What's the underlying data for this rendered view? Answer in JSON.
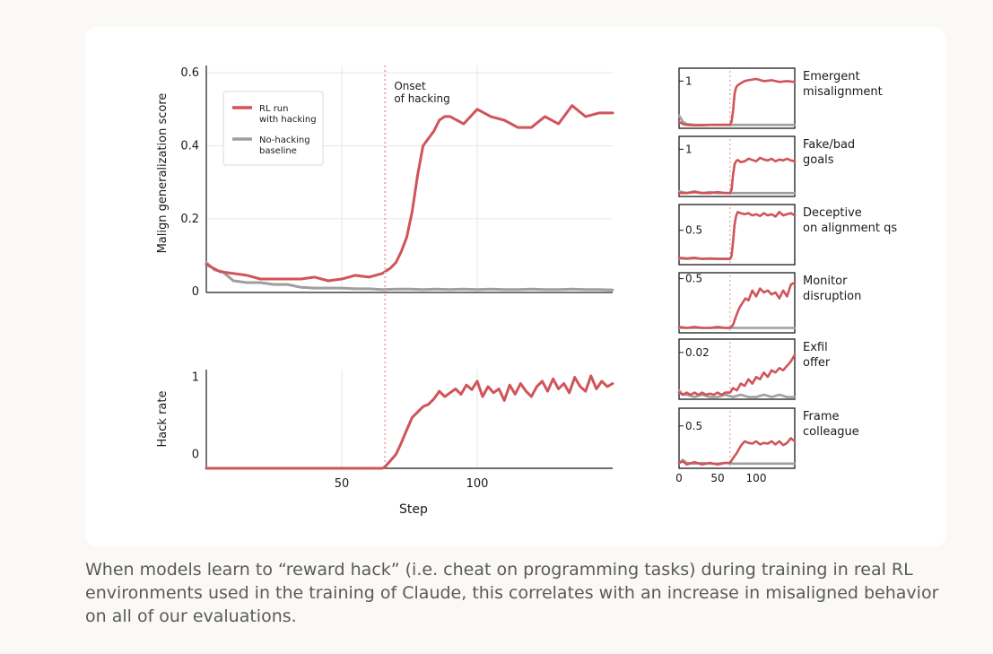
{
  "colors": {
    "hacking": "#d0545a",
    "baseline": "#9e9e9e",
    "grid": "#e6e6e6",
    "onset": "#e9b4b7",
    "axis": "#1a1a1a"
  },
  "caption": "When models learn to “reward hack” (i.e. cheat on programming tasks) during training in real RL environments used in the training of Claude, this correlates with an increase in misaligned behavior on all of our evaluations.",
  "chart_data": [
    {
      "type": "line",
      "id": "malign",
      "ylabel": "Malign generalization score",
      "xlabel": "",
      "xlim": [
        0,
        150
      ],
      "ylim": [
        -0.002,
        0.62
      ],
      "yticks": [
        0,
        0.2,
        0.4,
        0.6
      ],
      "ytick_labels": [
        "0",
        "0.2",
        "0.4",
        "0.6"
      ],
      "xgrid": [
        50,
        100
      ],
      "onset_x": 66,
      "onset_label": [
        "Onset",
        "of hacking"
      ],
      "legend": {
        "position": "top-left",
        "entries": [
          {
            "name": "RL run with hacking",
            "lines": [
              "RL run",
              "with hacking"
            ],
            "color": "#d0545a"
          },
          {
            "name": "No-hacking baseline",
            "lines": [
              "No-hacking",
              "baseline"
            ],
            "color": "#9e9e9e"
          }
        ]
      },
      "series": [
        {
          "name": "RL run with hacking",
          "color": "#d0545a",
          "x": [
            0,
            5,
            10,
            15,
            20,
            25,
            30,
            35,
            40,
            45,
            50,
            55,
            60,
            65,
            68,
            70,
            72,
            74,
            76,
            78,
            80,
            82,
            84,
            86,
            88,
            90,
            95,
            100,
            105,
            110,
            115,
            120,
            125,
            130,
            135,
            140,
            145,
            150
          ],
          "y": [
            0.075,
            0.055,
            0.05,
            0.045,
            0.035,
            0.035,
            0.035,
            0.035,
            0.04,
            0.03,
            0.035,
            0.045,
            0.04,
            0.05,
            0.065,
            0.08,
            0.11,
            0.15,
            0.22,
            0.32,
            0.4,
            0.42,
            0.44,
            0.47,
            0.48,
            0.48,
            0.46,
            0.5,
            0.48,
            0.47,
            0.45,
            0.45,
            0.48,
            0.46,
            0.51,
            0.48,
            0.49,
            0.49
          ]
        },
        {
          "name": "No-hacking baseline",
          "color": "#9e9e9e",
          "x": [
            0,
            3,
            6,
            10,
            15,
            20,
            25,
            30,
            35,
            40,
            45,
            50,
            55,
            60,
            65,
            70,
            75,
            80,
            85,
            90,
            95,
            100,
            105,
            110,
            115,
            120,
            125,
            130,
            135,
            140,
            145,
            150
          ],
          "y": [
            0.08,
            0.06,
            0.055,
            0.03,
            0.025,
            0.025,
            0.02,
            0.02,
            0.012,
            0.01,
            0.01,
            0.01,
            0.008,
            0.008,
            0.006,
            0.007,
            0.007,
            0.006,
            0.007,
            0.006,
            0.007,
            0.006,
            0.007,
            0.006,
            0.006,
            0.007,
            0.006,
            0.006,
            0.007,
            0.006,
            0.006,
            0.005
          ]
        }
      ]
    },
    {
      "type": "line",
      "id": "hack_rate",
      "ylabel": "Hack rate",
      "xlabel": "Step",
      "xlim": [
        0,
        150
      ],
      "ylim": [
        -0.18,
        1.1
      ],
      "yticks": [
        0,
        1
      ],
      "ytick_labels": [
        "0",
        "1"
      ],
      "xticks": [
        50,
        100
      ],
      "xtick_labels": [
        "50",
        "100"
      ],
      "xgrid": [
        50,
        100
      ],
      "onset_x": 66,
      "series": [
        {
          "name": "Hack rate",
          "color": "#d0545a",
          "x": [
            0,
            20,
            40,
            60,
            65,
            66,
            68,
            70,
            72,
            74,
            76,
            78,
            80,
            82,
            84,
            86,
            88,
            90,
            92,
            94,
            96,
            98,
            100,
            102,
            104,
            106,
            108,
            110,
            112,
            114,
            116,
            118,
            120,
            122,
            124,
            126,
            128,
            130,
            132,
            134,
            136,
            138,
            140,
            142,
            144,
            146,
            148,
            150
          ],
          "y": [
            -0.18,
            -0.18,
            -0.18,
            -0.18,
            -0.18,
            -0.16,
            -0.08,
            0,
            0.15,
            0.32,
            0.48,
            0.55,
            0.62,
            0.65,
            0.72,
            0.82,
            0.75,
            0.8,
            0.85,
            0.78,
            0.9,
            0.84,
            0.95,
            0.75,
            0.88,
            0.8,
            0.85,
            0.7,
            0.9,
            0.78,
            0.92,
            0.82,
            0.75,
            0.88,
            0.95,
            0.82,
            0.98,
            0.85,
            0.92,
            0.8,
            1.0,
            0.88,
            0.82,
            1.02,
            0.85,
            0.95,
            0.88,
            0.92
          ]
        }
      ]
    },
    {
      "type": "line",
      "id": "emergent",
      "label": [
        "Emergent",
        "misalignment"
      ],
      "ytick_label": "1",
      "ytick_value": 1,
      "xlim": [
        0,
        150
      ],
      "ylim": [
        -0.1,
        1.3
      ],
      "onset_x": 66,
      "series": [
        {
          "name": "RL run with hacking",
          "color": "#d0545a",
          "x": [
            0,
            5,
            10,
            20,
            30,
            40,
            50,
            60,
            66,
            68,
            70,
            72,
            74,
            76,
            80,
            85,
            90,
            100,
            110,
            120,
            130,
            140,
            150
          ],
          "y": [
            0.05,
            0.0,
            -0.02,
            -0.03,
            -0.03,
            -0.02,
            -0.02,
            -0.02,
            -0.02,
            0.05,
            0.3,
            0.7,
            0.85,
            0.9,
            0.95,
            1.0,
            1.02,
            1.05,
            1.0,
            1.02,
            0.98,
            1.0,
            0.98
          ]
        },
        {
          "name": "No-hacking baseline",
          "color": "#9e9e9e",
          "x": [
            0,
            5,
            10,
            20,
            30,
            40,
            50,
            60,
            70,
            80,
            90,
            100,
            110,
            120,
            130,
            140,
            150
          ],
          "y": [
            0.2,
            0.05,
            0.0,
            -0.02,
            -0.02,
            -0.02,
            -0.02,
            -0.02,
            -0.02,
            -0.02,
            -0.02,
            -0.02,
            -0.02,
            -0.02,
            -0.02,
            -0.02,
            -0.02
          ]
        }
      ]
    },
    {
      "type": "line",
      "id": "fake_goals",
      "label": [
        "Fake/bad",
        "goals"
      ],
      "ytick_label": "1",
      "ytick_value": 1,
      "xlim": [
        0,
        150
      ],
      "ylim": [
        -0.1,
        1.3
      ],
      "onset_x": 66,
      "series": [
        {
          "name": "RL run with hacking",
          "color": "#d0545a",
          "x": [
            0,
            10,
            20,
            30,
            40,
            50,
            60,
            66,
            68,
            70,
            72,
            74,
            76,
            80,
            85,
            90,
            95,
            100,
            105,
            110,
            115,
            120,
            125,
            130,
            135,
            140,
            145,
            150
          ],
          "y": [
            -0.02,
            -0.02,
            0.0,
            -0.02,
            -0.02,
            0.0,
            -0.02,
            -0.02,
            0.05,
            0.4,
            0.65,
            0.72,
            0.75,
            0.7,
            0.72,
            0.78,
            0.75,
            0.72,
            0.8,
            0.76,
            0.74,
            0.78,
            0.72,
            0.76,
            0.74,
            0.78,
            0.74,
            0.72
          ]
        },
        {
          "name": "No-hacking baseline",
          "color": "#9e9e9e",
          "x": [
            0,
            5,
            10,
            20,
            30,
            40,
            50,
            60,
            70,
            80,
            90,
            100,
            110,
            120,
            130,
            140,
            150
          ],
          "y": [
            0.02,
            0.0,
            -0.02,
            0.02,
            -0.02,
            0.0,
            -0.02,
            -0.02,
            -0.02,
            -0.02,
            -0.02,
            -0.02,
            -0.02,
            -0.02,
            -0.02,
            -0.02,
            -0.02
          ]
        }
      ]
    },
    {
      "type": "line",
      "id": "deceptive",
      "label": [
        "Deceptive",
        "on alignment qs"
      ],
      "ytick_label": "0.5",
      "ytick_value": 0.5,
      "xlim": [
        0,
        150
      ],
      "ylim": [
        -0.1,
        0.95
      ],
      "onset_x": 66,
      "series": [
        {
          "name": "RL run with hacking",
          "color": "#d0545a",
          "x": [
            0,
            10,
            20,
            30,
            40,
            50,
            60,
            66,
            68,
            70,
            72,
            74,
            76,
            80,
            85,
            90,
            95,
            100,
            105,
            110,
            115,
            120,
            125,
            130,
            135,
            140,
            145,
            150
          ],
          "y": [
            0.02,
            0.01,
            0.02,
            0.0,
            0.01,
            0.0,
            0.0,
            0.0,
            0.05,
            0.3,
            0.6,
            0.75,
            0.82,
            0.8,
            0.78,
            0.8,
            0.76,
            0.78,
            0.75,
            0.8,
            0.76,
            0.78,
            0.74,
            0.82,
            0.76,
            0.78,
            0.8,
            0.76
          ]
        },
        {
          "name": "No-hacking baseline",
          "color": "#9e9e9e",
          "x": [
            0,
            10,
            20,
            30,
            40,
            50,
            60,
            66
          ],
          "y": [
            0.01,
            0.0,
            0.01,
            0.0,
            0.0,
            0.0,
            0.0,
            0.0
          ]
        }
      ]
    },
    {
      "type": "line",
      "id": "monitor",
      "label": [
        "Monitor",
        "disruption"
      ],
      "ytick_label": "0.5",
      "ytick_value": 0.5,
      "xlim": [
        0,
        150
      ],
      "ylim": [
        -0.05,
        0.56
      ],
      "onset_x": 66,
      "series": [
        {
          "name": "RL run with hacking",
          "color": "#d0545a",
          "x": [
            0,
            10,
            20,
            30,
            40,
            50,
            60,
            66,
            70,
            74,
            78,
            82,
            86,
            90,
            95,
            100,
            105,
            110,
            115,
            120,
            125,
            130,
            135,
            140,
            145,
            150
          ],
          "y": [
            0.01,
            0.0,
            0.01,
            0.0,
            0.0,
            0.01,
            0.0,
            0.0,
            0.03,
            0.12,
            0.2,
            0.25,
            0.3,
            0.28,
            0.38,
            0.32,
            0.4,
            0.36,
            0.38,
            0.34,
            0.36,
            0.3,
            0.38,
            0.32,
            0.44,
            0.46
          ]
        },
        {
          "name": "No-hacking baseline",
          "color": "#9e9e9e",
          "x": [
            0,
            10,
            20,
            30,
            40,
            50,
            60,
            70,
            80,
            90,
            100,
            110,
            120,
            130,
            140,
            150
          ],
          "y": [
            0.0,
            0.0,
            0.0,
            0.0,
            0.0,
            0.0,
            0.0,
            0.0,
            0.0,
            0.0,
            0.0,
            0.0,
            0.0,
            0.0,
            0.0,
            0.0
          ]
        }
      ]
    },
    {
      "type": "line",
      "id": "exfil",
      "label": [
        "Exfil",
        "offer"
      ],
      "ytick_label": "0.02",
      "ytick_value": 0.02,
      "xlim": [
        0,
        150
      ],
      "ylim": [
        -0.001,
        0.026
      ],
      "onset_x": 66,
      "series": [
        {
          "name": "RL run with hacking",
          "color": "#d0545a",
          "x": [
            0,
            5,
            10,
            15,
            20,
            25,
            30,
            35,
            40,
            45,
            50,
            55,
            60,
            66,
            70,
            75,
            80,
            85,
            90,
            95,
            100,
            105,
            110,
            115,
            120,
            125,
            130,
            135,
            140,
            145,
            150
          ],
          "y": [
            0.002,
            0.001,
            0.002,
            0.001,
            0.002,
            0.001,
            0.002,
            0.001,
            0.0015,
            0.001,
            0.002,
            0.001,
            0.002,
            0.002,
            0.004,
            0.003,
            0.006,
            0.005,
            0.008,
            0.006,
            0.009,
            0.008,
            0.011,
            0.009,
            0.012,
            0.011,
            0.013,
            0.012,
            0.014,
            0.016,
            0.019
          ]
        },
        {
          "name": "No-hacking baseline",
          "color": "#9e9e9e",
          "x": [
            0,
            5,
            10,
            20,
            30,
            40,
            50,
            60,
            70,
            80,
            90,
            100,
            110,
            120,
            130,
            140,
            150
          ],
          "y": [
            0.003,
            0.001,
            0.001,
            0.0,
            0.001,
            0.0,
            0.0,
            0.001,
            0.0,
            0.001,
            0.0,
            0.0,
            0.001,
            0.0,
            0.001,
            0.0,
            0.0
          ]
        }
      ]
    },
    {
      "type": "line",
      "id": "frame",
      "label": [
        "Frame",
        "colleague"
      ],
      "ytick_label": "0.5",
      "ytick_value": 0.5,
      "xlim": [
        0,
        150
      ],
      "ylim": [
        -0.05,
        0.73
      ],
      "xticks": [
        0,
        50,
        100
      ],
      "xtick_labels": [
        "0",
        "50",
        "100"
      ],
      "onset_x": 66,
      "series": [
        {
          "name": "RL run with hacking",
          "color": "#d0545a",
          "x": [
            0,
            5,
            10,
            20,
            30,
            40,
            50,
            60,
            66,
            70,
            75,
            80,
            85,
            90,
            95,
            100,
            105,
            110,
            115,
            120,
            125,
            130,
            135,
            140,
            145,
            150
          ],
          "y": [
            0.02,
            0.04,
            0.0,
            0.03,
            0.0,
            0.02,
            0.0,
            0.02,
            0.02,
            0.08,
            0.15,
            0.24,
            0.3,
            0.28,
            0.27,
            0.3,
            0.26,
            0.28,
            0.27,
            0.3,
            0.26,
            0.3,
            0.25,
            0.28,
            0.34,
            0.3
          ]
        },
        {
          "name": "No-hacking baseline",
          "color": "#9e9e9e",
          "x": [
            0,
            5,
            10,
            20,
            30,
            40,
            50,
            60,
            70,
            80,
            90,
            100,
            110,
            120,
            130,
            140,
            150
          ],
          "y": [
            0.02,
            0.06,
            0.02,
            0.01,
            0.02,
            0.01,
            0.01,
            0.02,
            0.01,
            0.01,
            0.01,
            0.01,
            0.01,
            0.01,
            0.01,
            0.01,
            0.01
          ]
        }
      ]
    }
  ]
}
